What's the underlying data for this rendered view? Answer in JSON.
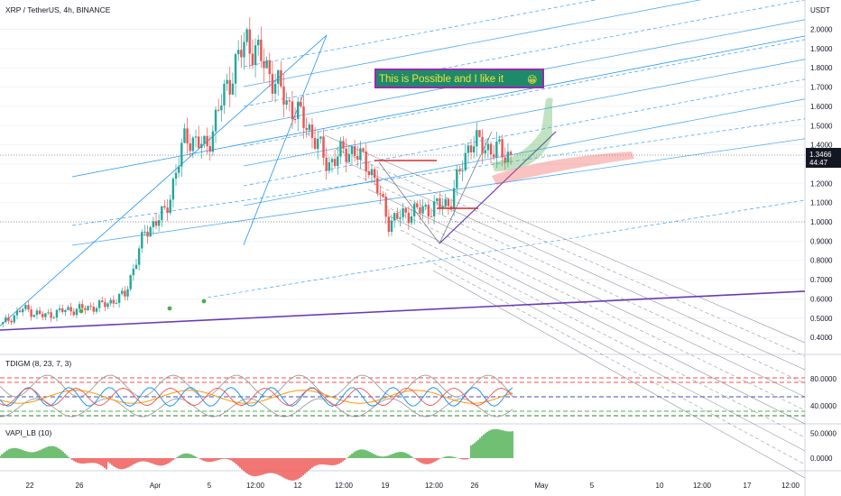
{
  "header": {
    "symbol_line": "XRP / TetherUS, 4h, BINANCE",
    "currency_badge": "USDT"
  },
  "annotation": {
    "text": "This is Possible and I like it",
    "emoji": "😁",
    "bg_color": "#1e8a6a",
    "text_color": "#f5e23a",
    "border_color": "#9c27b0"
  },
  "price_scale": {
    "ticks": [
      "2.0000",
      "1.9000",
      "1.8000",
      "1.7000",
      "1.6000",
      "1.5000",
      "1.4000",
      "1.3000",
      "1.2000",
      "1.1000",
      "1.0000",
      "0.9000",
      "0.8000",
      "0.7000",
      "0.6000",
      "0.5000",
      "0.4000"
    ],
    "last_price": "1.3466",
    "countdown": "44:47",
    "last_price_color": "#131722"
  },
  "time_axis": {
    "labels": [
      "22",
      "26",
      "Apr",
      "5",
      "12:00",
      "12",
      "12:00",
      "19",
      "12:00",
      "26",
      "May",
      "5",
      "10",
      "12:00",
      "17",
      "12:00"
    ]
  },
  "indicators": {
    "tdigm": {
      "title": "TDIGM (8, 23, 7, 3)",
      "ticks": [
        "80.0000",
        "40.0000"
      ]
    },
    "vapi": {
      "title": "VAPI_LB (10)",
      "ticks": [
        "50.0000",
        "0.0000"
      ]
    }
  },
  "colors": {
    "candle_up": "#26a69a",
    "candle_down": "#ef5350",
    "pitchfork": "#2196f3",
    "trendline": "#673ab7",
    "projection_up": "#4caf50",
    "projection_down": "#ef5350"
  },
  "chart_data": {
    "type": "candlestick",
    "title": "XRP / TetherUS, 4h, BINANCE",
    "ylim": [
      0.3,
      2.1
    ],
    "close_path": [
      {
        "t": "Mar 19",
        "p": 0.47
      },
      {
        "t": "Mar 22",
        "p": 0.55
      },
      {
        "t": "Mar 24",
        "p": 0.51
      },
      {
        "t": "Mar 26",
        "p": 0.54
      },
      {
        "t": "Mar 29",
        "p": 0.55
      },
      {
        "t": "Apr 1",
        "p": 0.57
      },
      {
        "t": "Apr 3",
        "p": 0.62
      },
      {
        "t": "Apr 5",
        "p": 0.95
      },
      {
        "t": "Apr 7",
        "p": 1.05
      },
      {
        "t": "Apr 9",
        "p": 1.45
      },
      {
        "t": "Apr 10",
        "p": 1.38
      },
      {
        "t": "Apr 12",
        "p": 1.7
      },
      {
        "t": "Apr 13",
        "p": 1.95
      },
      {
        "t": "Apr 14",
        "p": 1.8
      },
      {
        "t": "Apr 15",
        "p": 1.62
      },
      {
        "t": "Apr 17",
        "p": 1.5
      },
      {
        "t": "Apr 18",
        "p": 1.3
      },
      {
        "t": "Apr 19",
        "p": 1.38
      },
      {
        "t": "Apr 21",
        "p": 1.3
      },
      {
        "t": "Apr 23",
        "p": 1.0
      },
      {
        "t": "Apr 24",
        "p": 1.05
      },
      {
        "t": "Apr 25",
        "p": 1.07
      },
      {
        "t": "Apr 26",
        "p": 1.1
      },
      {
        "t": "Apr 27",
        "p": 1.42
      },
      {
        "t": "Apr 28",
        "p": 1.38
      },
      {
        "t": "Apr 29",
        "p": 1.3466
      }
    ],
    "last_price": 1.3466,
    "tdigm_range": [
      0,
      100
    ],
    "vapi_range": [
      -30,
      60
    ]
  }
}
